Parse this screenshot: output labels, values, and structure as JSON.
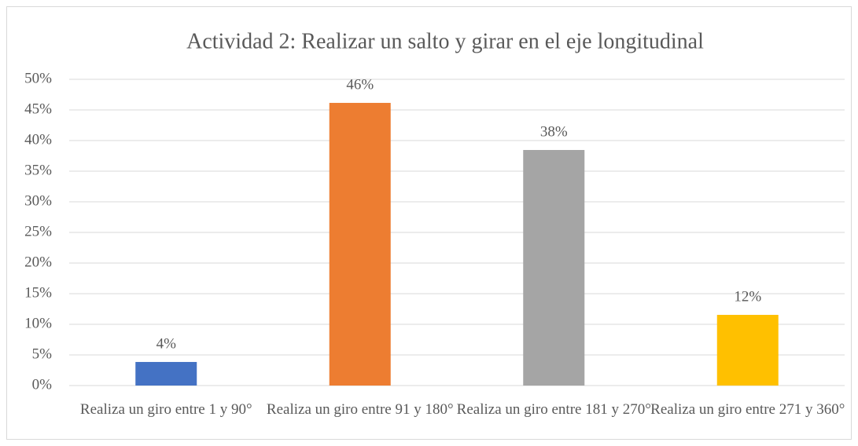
{
  "chart_data": {
    "type": "bar",
    "title": "Actividad 2: Realizar un salto y girar en el eje longitudinal",
    "categories": [
      "Realiza un giro entre 1 y 90°",
      "Realiza un giro entre 91 y 180°",
      "Realiza un giro entre 181 y 270°",
      "Realiza un giro entre 271 y 360°"
    ],
    "values": [
      3.85,
      46.15,
      38.46,
      11.54
    ],
    "value_labels": [
      "4%",
      "46%",
      "38%",
      "12%"
    ],
    "colors": [
      "#4472c4",
      "#ed7d31",
      "#a5a5a5",
      "#ffc000"
    ],
    "ylim": [
      0,
      50
    ],
    "yticks": [
      {
        "value": 0,
        "label": "0%"
      },
      {
        "value": 5,
        "label": "5%"
      },
      {
        "value": 10,
        "label": "10%"
      },
      {
        "value": 15,
        "label": "15%"
      },
      {
        "value": 20,
        "label": "20%"
      },
      {
        "value": 25,
        "label": "25%"
      },
      {
        "value": 30,
        "label": "30%"
      },
      {
        "value": 35,
        "label": "35%"
      },
      {
        "value": 40,
        "label": "40%"
      },
      {
        "value": 45,
        "label": "45%"
      },
      {
        "value": 50,
        "label": "50%"
      }
    ],
    "grid": true
  }
}
